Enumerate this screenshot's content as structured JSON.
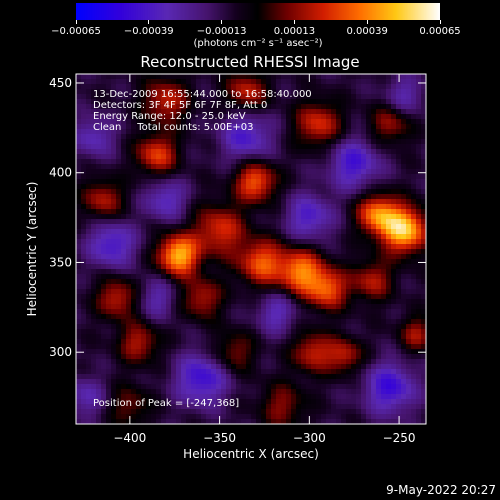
{
  "chart_data": {
    "type": "heatmap",
    "title": "Reconstructed RHESSI Image",
    "xlabel": "Heliocentric X (arcsec)",
    "ylabel": "Heliocentric Y (arcsec)",
    "xlim": [
      -430,
      -235
    ],
    "ylim": [
      260,
      455
    ],
    "xticks": [
      -400,
      -350,
      -300,
      -250
    ],
    "xtick_labels": [
      "−400",
      "−350",
      "−300",
      "−250"
    ],
    "yticks": [
      300,
      350,
      400,
      450
    ],
    "ytick_labels": [
      "300",
      "350",
      "400",
      "450"
    ],
    "colorbar": {
      "ticks": [
        -0.00065,
        -0.00039,
        -0.00013,
        0.00013,
        0.00039,
        0.00065
      ],
      "tick_labels": [
        "−0.00065",
        "−0.00039",
        "−0.00013",
        "0.00013",
        "0.00039",
        "0.00065"
      ],
      "range": [
        -0.00065,
        0.00065
      ],
      "units": "(photons cm⁻² s⁻¹ asec⁻²)",
      "colormap": "rhessi"
    },
    "annotations": [
      "13-Dec-2009 16:55:44.000 to 16:58:40.000",
      "Detectors: 3F 4F 5F 6F 7F 8F, Att 0",
      "Energy Range: 12.0 - 25.0 keV",
      "Clean     Total counts: 5.00E+03"
    ],
    "peak_label": "Position of Peak = [-247,368]",
    "peak": {
      "x": -247,
      "y": 368
    },
    "sources": [
      {
        "x": -373,
        "y": 354,
        "amp": 1.0,
        "sigma": 8
      },
      {
        "x": -247,
        "y": 368,
        "amp": 1.05,
        "sigma": 9
      },
      {
        "x": -262,
        "y": 377,
        "amp": 0.8,
        "sigma": 8
      },
      {
        "x": -330,
        "y": 395,
        "amp": 0.75,
        "sigma": 8
      },
      {
        "x": -350,
        "y": 368,
        "amp": 0.6,
        "sigma": 10
      },
      {
        "x": -305,
        "y": 345,
        "amp": 0.8,
        "sigma": 9
      },
      {
        "x": -290,
        "y": 335,
        "amp": 0.7,
        "sigma": 8
      },
      {
        "x": -327,
        "y": 350,
        "amp": 0.7,
        "sigma": 9
      },
      {
        "x": -385,
        "y": 410,
        "amp": 0.65,
        "sigma": 8
      },
      {
        "x": -407,
        "y": 330,
        "amp": 0.55,
        "sigma": 8
      },
      {
        "x": -395,
        "y": 305,
        "amp": 0.5,
        "sigma": 8
      },
      {
        "x": -298,
        "y": 300,
        "amp": 0.55,
        "sigma": 8
      },
      {
        "x": -280,
        "y": 298,
        "amp": 0.5,
        "sigma": 7
      },
      {
        "x": -295,
        "y": 427,
        "amp": 0.6,
        "sigma": 9
      },
      {
        "x": -255,
        "y": 427,
        "amp": 0.45,
        "sigma": 8
      },
      {
        "x": -240,
        "y": 310,
        "amp": 0.45,
        "sigma": 7
      },
      {
        "x": -335,
        "y": 445,
        "amp": 0.55,
        "sigma": 8
      },
      {
        "x": -380,
        "y": 440,
        "amp": 0.55,
        "sigma": 9
      },
      {
        "x": -415,
        "y": 385,
        "amp": 0.5,
        "sigma": 8
      },
      {
        "x": -360,
        "y": 330,
        "amp": 0.5,
        "sigma": 8
      },
      {
        "x": -342,
        "y": 300,
        "amp": 0.4,
        "sigma": 8
      },
      {
        "x": -265,
        "y": 340,
        "amp": 0.5,
        "sigma": 8
      },
      {
        "x": -400,
        "y": 270,
        "amp": 0.35,
        "sigma": 8
      },
      {
        "x": -315,
        "y": 270,
        "amp": 0.4,
        "sigma": 9
      },
      {
        "x": -360,
        "y": 285,
        "amp": -0.6,
        "sigma": 10
      },
      {
        "x": -410,
        "y": 360,
        "amp": -0.55,
        "sigma": 9
      },
      {
        "x": -335,
        "y": 420,
        "amp": -0.5,
        "sigma": 10
      },
      {
        "x": -275,
        "y": 405,
        "amp": -0.55,
        "sigma": 10
      },
      {
        "x": -255,
        "y": 280,
        "amp": -0.6,
        "sigma": 10
      },
      {
        "x": -300,
        "y": 375,
        "amp": -0.5,
        "sigma": 9
      },
      {
        "x": -380,
        "y": 385,
        "amp": -0.45,
        "sigma": 8
      },
      {
        "x": -420,
        "y": 420,
        "amp": -0.4,
        "sigma": 8
      },
      {
        "x": -318,
        "y": 322,
        "amp": -0.4,
        "sigma": 8
      },
      {
        "x": -247,
        "y": 443,
        "amp": -0.35,
        "sigma": 8
      },
      {
        "x": -385,
        "y": 330,
        "amp": -0.35,
        "sigma": 8
      },
      {
        "x": -425,
        "y": 275,
        "amp": -0.35,
        "sigma": 8
      }
    ]
  },
  "footer": {
    "timestamp": "9-May-2022 20:27"
  }
}
